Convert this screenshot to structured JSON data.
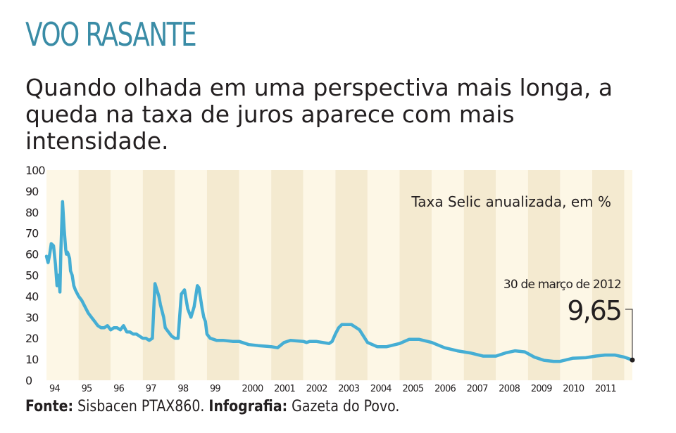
{
  "header": {
    "kicker": "VOO RASANTE",
    "subtitle": "Quando olhada em uma perspectiva mais longa, a queda na taxa de juros aparece com mais intensidade."
  },
  "footer": {
    "source_label": "Fonte:",
    "source_value": "Sisbacen PTAX860.",
    "infographic_label": "Infografia:",
    "infographic_value": "Gazeta do Povo."
  },
  "colors": {
    "line": "#45aed4",
    "band_light": "#fdf7e6",
    "band_dark": "#f4ead0",
    "kicker": "#3a8ca6",
    "text": "#231f20"
  },
  "chart_data": {
    "type": "line",
    "title": "Taxa Selic anualizada, em %",
    "ylim": [
      0,
      100
    ],
    "yticks": [
      0,
      10,
      20,
      30,
      40,
      50,
      60,
      70,
      80,
      90,
      100
    ],
    "xlim": [
      1994.0,
      2012.25
    ],
    "xtick_labels": [
      "94",
      "95",
      "96",
      "97",
      "98",
      "99",
      "2000",
      "2001",
      "2002",
      "2003",
      "2004",
      "2005",
      "2006",
      "2007",
      "2008",
      "2009",
      "2010",
      "2011"
    ],
    "grid": "alternating-year-bands",
    "series": [
      {
        "x": [
          1994.0,
          1994.05,
          1994.1,
          1994.15,
          1994.22,
          1994.28,
          1994.33,
          1994.38,
          1994.42,
          1994.45,
          1994.5,
          1994.55,
          1994.6,
          1994.62,
          1994.65,
          1994.68,
          1994.72,
          1994.75,
          1994.8,
          1994.85,
          1994.9,
          1995.0,
          1995.1,
          1995.2,
          1995.3,
          1995.4,
          1995.5,
          1995.6,
          1995.7,
          1995.8,
          1995.9,
          1996.0,
          1996.1,
          1996.2,
          1996.3,
          1996.4,
          1996.5,
          1996.6,
          1996.7,
          1996.8,
          1996.9,
          1997.0,
          1997.1,
          1997.2,
          1997.3,
          1997.38,
          1997.42,
          1997.5,
          1997.55,
          1997.6,
          1997.65,
          1997.7,
          1997.8,
          1997.9,
          1998.0,
          1998.1,
          1998.2,
          1998.3,
          1998.4,
          1998.5,
          1998.6,
          1998.7,
          1998.75,
          1998.8,
          1998.85,
          1998.9,
          1998.95,
          1999.0,
          1999.1,
          1999.2,
          1999.3,
          1999.5,
          1999.8,
          2000.0,
          2000.3,
          2000.6,
          2001.0,
          2001.2,
          2001.4,
          2001.6,
          2002.0,
          2002.1,
          2002.2,
          2002.4,
          2002.6,
          2002.8,
          2002.9,
          2003.0,
          2003.1,
          2003.2,
          2003.3,
          2003.5,
          2003.75,
          2004.0,
          2004.3,
          2004.6,
          2005.0,
          2005.3,
          2005.6,
          2006.0,
          2006.4,
          2006.8,
          2007.2,
          2007.6,
          2008.0,
          2008.3,
          2008.6,
          2008.9,
          2009.2,
          2009.5,
          2009.8,
          2010.0,
          2010.4,
          2010.8,
          2011.1,
          2011.4,
          2011.7,
          2012.0,
          2012.25
        ],
        "values": [
          59,
          56,
          60,
          65,
          64,
          55,
          45,
          50,
          42,
          62,
          85,
          72,
          62,
          60,
          61,
          60,
          58,
          52,
          50,
          45,
          43,
          40,
          38,
          35,
          32,
          30,
          28,
          26,
          25,
          25,
          26,
          24,
          25,
          25,
          24,
          26,
          23,
          23,
          22,
          22,
          21,
          20,
          20,
          19,
          20,
          46,
          44,
          40,
          36,
          33,
          30,
          25,
          23,
          21,
          20,
          20,
          41,
          43,
          34,
          30,
          35,
          45,
          44,
          39,
          34,
          30,
          28,
          22,
          20,
          19.5,
          19,
          19,
          18.5,
          18.5,
          17,
          16.5,
          16,
          15.5,
          18,
          19,
          18.5,
          18,
          18.5,
          18.5,
          18,
          17.5,
          18.5,
          22,
          25,
          26.5,
          26.5,
          26.5,
          24,
          18,
          16,
          16,
          17.5,
          19.5,
          19.5,
          18,
          15.5,
          14,
          13,
          11.5,
          11.5,
          13,
          14,
          13.5,
          11,
          9.5,
          9,
          9,
          10.5,
          10.75,
          11.5,
          12,
          12,
          11,
          9.65
        ]
      }
    ],
    "annotation": {
      "date_label": "30 de março de 2012",
      "value_label": "9,65",
      "x": 2012.25,
      "y": 9.65
    }
  }
}
